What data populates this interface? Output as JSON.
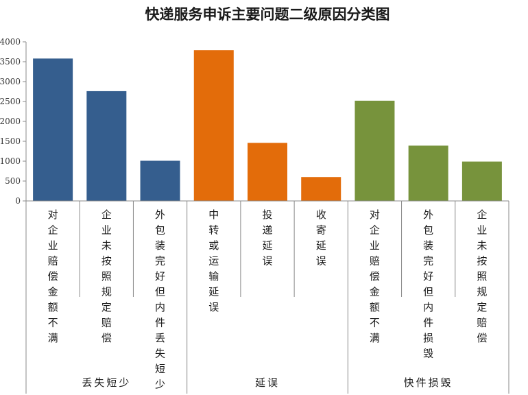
{
  "chart_data": {
    "type": "bar",
    "title": "快递服务申诉主要问题二级原因分类图",
    "xlabel": "",
    "ylabel": "",
    "ylim": [
      0,
      4000
    ],
    "yticks": [
      0,
      500,
      1000,
      1500,
      2000,
      2500,
      3000,
      3500,
      4000
    ],
    "grid": false,
    "legend": "none",
    "groups": [
      {
        "name": "丢失短少",
        "color": "#355e8e",
        "categories": [
          "对企业赔偿金额不满",
          "企业未按照规定赔偿",
          "外包装完好但内件丢失短少"
        ],
        "values": [
          3580,
          2760,
          1010
        ]
      },
      {
        "name": "延误",
        "color": "#e36c0a",
        "categories": [
          "中转或运输延误",
          "投递延误",
          "收寄延误"
        ],
        "values": [
          3790,
          1460,
          600
        ]
      },
      {
        "name": "快件损毁",
        "color": "#77933c",
        "categories": [
          "对企业赔偿金额不满",
          "外包装完好但内件损毁",
          "企业未按照规定赔偿"
        ],
        "values": [
          2520,
          1390,
          990
        ]
      }
    ]
  }
}
